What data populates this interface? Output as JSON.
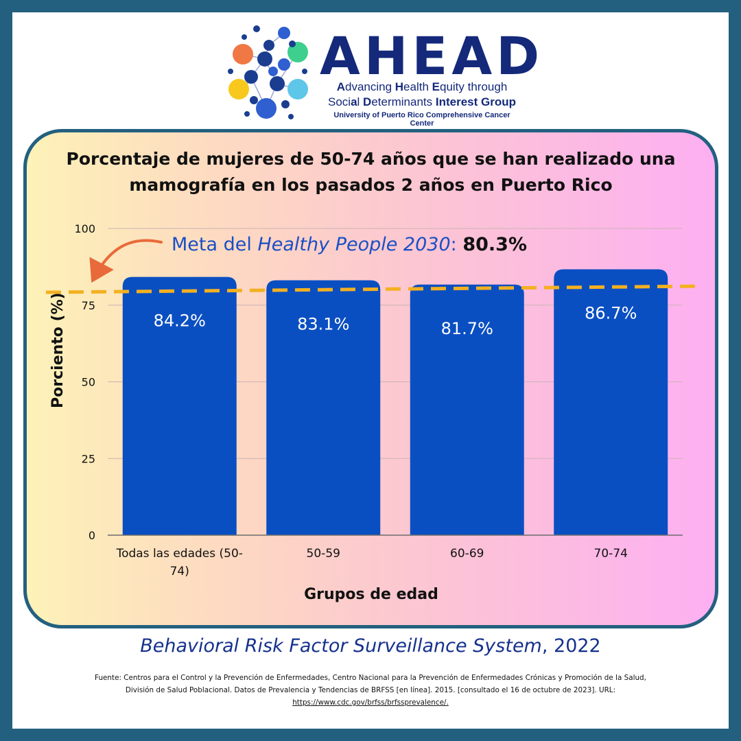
{
  "logo": {
    "brand": "AHEAD",
    "tagline_line1": [
      {
        "t": "A",
        "b": true
      },
      {
        "t": "dvancing ",
        "b": false
      },
      {
        "t": "H",
        "b": true
      },
      {
        "t": "ealth ",
        "b": false
      },
      {
        "t": "E",
        "b": true
      },
      {
        "t": "quity through",
        "b": false
      }
    ],
    "tagline_line2": [
      {
        "t": "Soci",
        "b": false
      },
      {
        "t": "a",
        "b": true
      },
      {
        "t": "l ",
        "b": false
      },
      {
        "t": "D",
        "b": true
      },
      {
        "t": "eterminants ",
        "b": false
      },
      {
        "t": "Interest Group",
        "b": true
      }
    ],
    "tagline_line3": "University of Puerto Rico Comprehensive Cancer Center",
    "dot_colors": [
      "#f07845",
      "#3ecf8e",
      "#f8c91c",
      "#5ec6e8",
      "#1a3d8f",
      "#2f5fd0"
    ]
  },
  "colors": {
    "bar": "#0a4fc2",
    "target_line": "#f4b021",
    "arrow": "#e86a3a",
    "frame": "#23607f",
    "annotation_blue": "#1a4fc4"
  },
  "chart_data": {
    "type": "bar",
    "title": "Porcentaje de mujeres de 50-74 años que se han realizado una mamografía en los pasados 2 años en Puerto Rico",
    "categories": [
      "Todas las edades (50-74)",
      "50-59",
      "60-69",
      "70-74"
    ],
    "category_lines": [
      [
        "Todas las edades (50-",
        "74)"
      ],
      [
        "50-59"
      ],
      [
        "60-69"
      ],
      [
        "70-74"
      ]
    ],
    "values": [
      84.2,
      83.1,
      81.7,
      86.7
    ],
    "value_labels": [
      "84.2%",
      "83.1%",
      "81.7%",
      "86.7%"
    ],
    "xlabel": "Grupos de edad",
    "ylabel": "Porciento (%)",
    "ylim": [
      0,
      100
    ],
    "yticks": [
      0,
      25,
      50,
      75,
      100
    ],
    "reference_line": {
      "value": 80.3,
      "label_prefix": "Meta del ",
      "label_italic": "Healthy People 2030",
      "label_colon": ": ",
      "label_value": "80.3%"
    }
  },
  "source": {
    "title_italic": "Behavioral Risk Factor Surveillance System",
    "title_rest": ", 2022",
    "footnote_line1": "Fuente: Centros para el Control y la Prevención de Enfermedades, Centro Nacional para la Prevención de Enfermedades Crónicas y Promoción de la Salud,",
    "footnote_line2": "División de Salud Poblacional. Datos de Prevalencia y Tendencias de BRFSS [en línea]. 2015. [consultado el 16 de octubre de 2023]. URL:",
    "url": "https://www.cdc.gov/brfss/brfssprevalence/."
  }
}
